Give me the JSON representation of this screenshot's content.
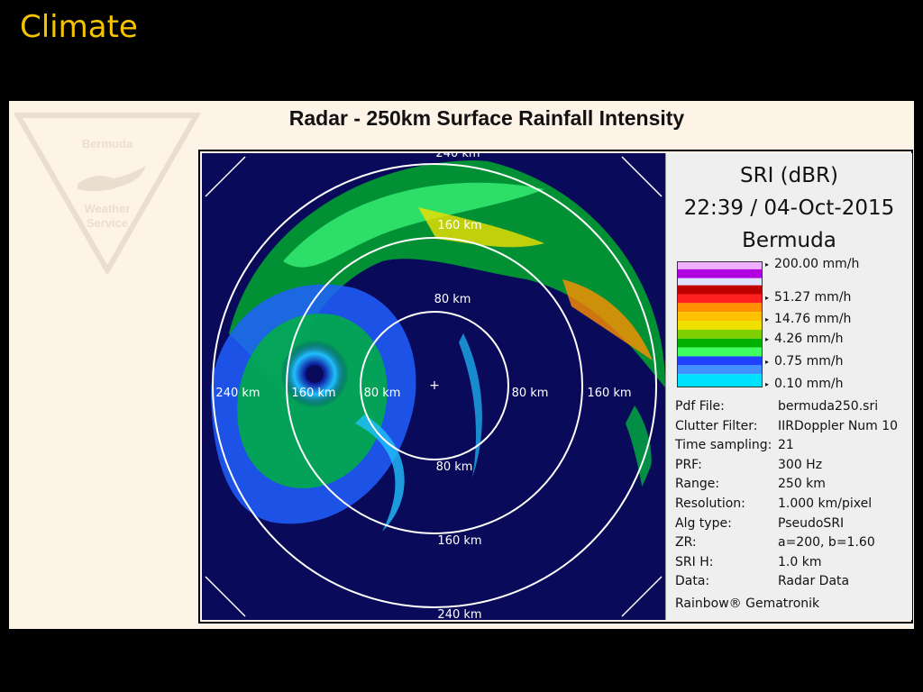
{
  "slide": {
    "title": "Climate"
  },
  "radar": {
    "title": "Radar - 250km Surface Rainfall Intensity",
    "rings": [
      "80 km",
      "160 km",
      "240 km"
    ],
    "east_labels": [
      "80 km",
      "160 km"
    ],
    "west_labels": [
      "80 km",
      "160 km",
      "240 km"
    ],
    "south_labels": [
      "80 km",
      "160 km",
      "240 km"
    ],
    "north_labels": [
      "80 km",
      "160 km",
      "240 km"
    ]
  },
  "info": {
    "product": "SRI (dBR)",
    "datetime": "22:39 / 04-Oct-2015",
    "station": "Bermuda",
    "scale": [
      "200.00 mm/h",
      "51.27 mm/h",
      "14.76 mm/h",
      "4.26 mm/h",
      "0.75 mm/h",
      "0.10 mm/h"
    ],
    "params": [
      {
        "k": "Pdf File:",
        "v": "bermuda250.sri"
      },
      {
        "k": "Clutter Filter:",
        "v": "IIRDoppler Num 10"
      },
      {
        "k": "Time sampling:",
        "v": "21"
      },
      {
        "k": "PRF:",
        "v": "300 Hz"
      },
      {
        "k": "Range:",
        "v": "250 km"
      },
      {
        "k": "Resolution:",
        "v": "1.000 km/pixel"
      },
      {
        "k": "Alg type:",
        "v": "PseudoSRI"
      },
      {
        "k": "ZR:",
        "v": "a=200, b=1.60"
      },
      {
        "k": "SRI H:",
        "v": "1.0 km"
      },
      {
        "k": "Data:",
        "v": "Radar Data"
      }
    ],
    "brand": "Rainbow® Gematronik"
  },
  "logo": {
    "line1": "Bermuda",
    "line2": "Weather",
    "line3": "Service"
  },
  "colors": {
    "title_yellow": "#f5c400",
    "radar_bg": "#0a0a5a",
    "scale": [
      "#b000e0",
      "#c00000",
      "#ff9000",
      "#f0e000",
      "#00b000",
      "#2040ff",
      "#00e0ff"
    ]
  }
}
